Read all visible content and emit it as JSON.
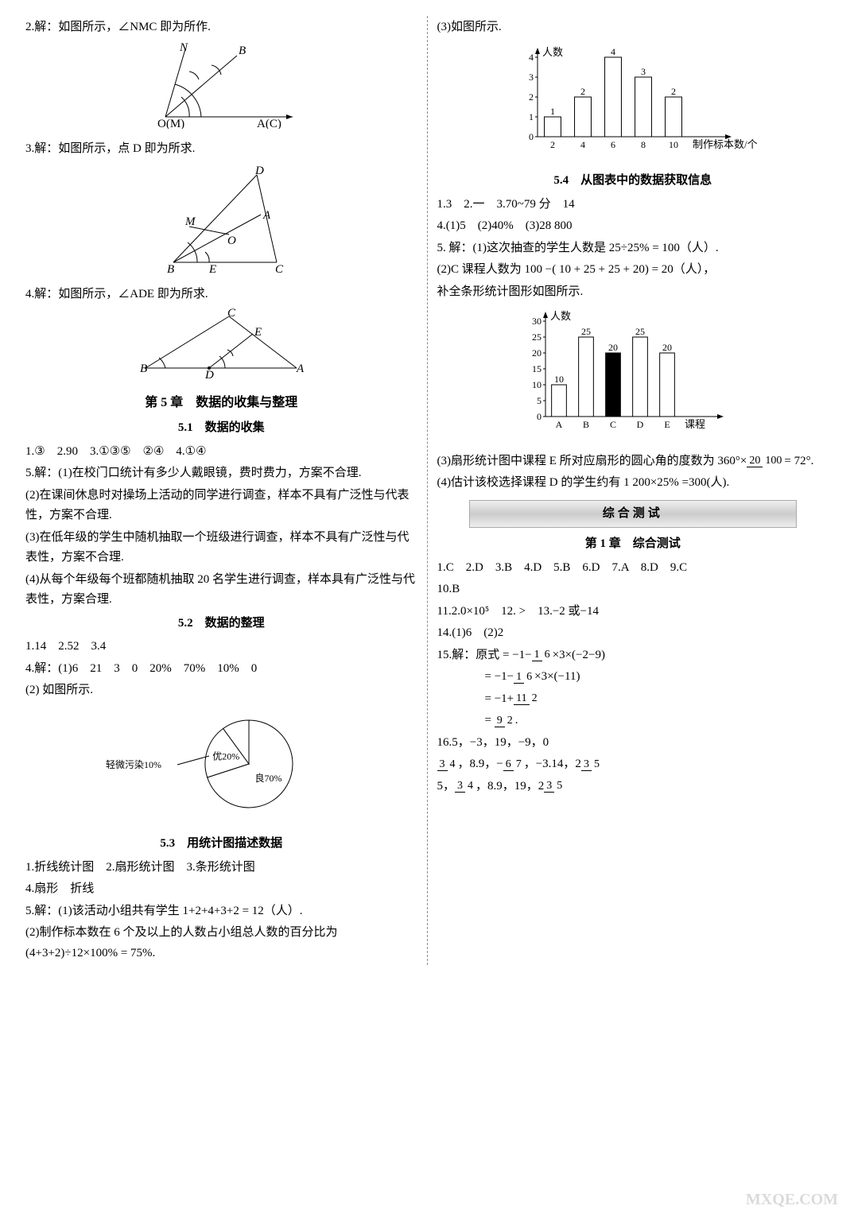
{
  "left": {
    "q2": "2.解：如图所示，∠NMC 即为所作.",
    "fig2": {
      "labels": [
        "N",
        "B",
        "O(M)",
        "A(C)"
      ]
    },
    "q3": "3.解：如图所示，点 D 即为所求.",
    "fig3": {
      "labels": [
        "D",
        "A",
        "M",
        "O",
        "B",
        "E",
        "C"
      ]
    },
    "q4": "4.解：如图所示，∠ADE 即为所求.",
    "fig4": {
      "labels": [
        "C",
        "E",
        "B",
        "D",
        "A"
      ]
    },
    "ch5_title": "第 5 章　数据的收集与整理",
    "s51_title": "5.1　数据的收集",
    "s51_a": "1.③　2.90　3.①③⑤　②④　4.①④",
    "s51_q5_1": "5.解：(1)在校门口统计有多少人戴眼镜，费时费力，方案不合理.",
    "s51_q5_2": "(2)在课间休息时对操场上活动的同学进行调查，样本不具有广泛性与代表性，方案不合理.",
    "s51_q5_3": "(3)在低年级的学生中随机抽取一个班级进行调查，样本不具有广泛性与代表性，方案不合理.",
    "s51_q5_4": "(4)从每个年级每个班都随机抽取 20 名学生进行调查，样本具有广泛性与代表性，方案合理.",
    "s52_title": "5.2　数据的整理",
    "s52_a": "1.14　2.52　3.4",
    "s52_q4": "4.解：(1)6　21　3　0　20%　70%　10%　0",
    "s52_q4_2": "(2) 如图所示.",
    "pie": {
      "slices": [
        {
          "label": "良70%",
          "pct": 70
        },
        {
          "label": "优20%",
          "pct": 20
        },
        {
          "label": "轻微污染10%",
          "pct": 10
        }
      ],
      "outside_label": "轻微污染10%"
    },
    "s53_title": "5.3　用统计图描述数据",
    "s53_a1": "1.折线统计图　2.扇形统计图　3.条形统计图",
    "s53_a4": "4.扇形　折线",
    "s53_q5_1": "5.解：(1)该活动小组共有学生 1+2+4+3+2 = 12（人）.",
    "s53_q5_2": "(2)制作标本数在 6 个及以上的人数占小组总人数的百分比为(4+3+2)÷12×100% = 75%."
  },
  "right": {
    "s53_q5_3": "(3)如图所示.",
    "bar1": {
      "ylabel": "人数",
      "xlabel": "制作标本数/个",
      "categories": [
        "2",
        "4",
        "6",
        "8",
        "10"
      ],
      "values": [
        1,
        2,
        4,
        3,
        2
      ],
      "value_labels": [
        "1",
        "2",
        "4",
        "3",
        "2"
      ],
      "ymax": 4,
      "ytick": 1,
      "bar_color": "#ffffff",
      "border_color": "#000000",
      "bg": "#ffffff"
    },
    "s54_title": "5.4　从图表中的数据获取信息",
    "s54_a1": "1.3　2.一　3.70~79 分　14",
    "s54_a4": "4.(1)5　(2)40%　(3)28 800",
    "s54_q5_1": "5. 解：(1)这次抽查的学生人数是 25÷25% = 100（人）.",
    "s54_q5_2": "(2)C 课程人数为 100 −( 10 + 25 + 25 + 20) = 20（人），",
    "s54_q5_2b": "补全条形统计图形如图所示.",
    "bar2": {
      "ylabel": "人数",
      "xlabel": "课程",
      "categories": [
        "A",
        "B",
        "C",
        "D",
        "E"
      ],
      "values": [
        10,
        25,
        20,
        25,
        20
      ],
      "value_labels": [
        "10",
        "25",
        "20",
        "25",
        "20"
      ],
      "ymax": 30,
      "ytick": 5,
      "highlight_index": 2,
      "bar_color": "#ffffff",
      "highlight_color": "#000000"
    },
    "s54_q5_3_prefix": "(3)扇形统计图中课程 E 所对应扇形的圆心角的度数为 360°×",
    "s54_q5_3_frac_num": "20",
    "s54_q5_3_frac_den": "100",
    "s54_q5_3_suffix": "= 72°.",
    "s54_q5_4": "(4)估计该校选择课程 D 的学生约有 1 200×25% =300(人).",
    "banner": "综合测试",
    "test1_title": "第 1 章　综合测试",
    "t1_mc": "1.C　2.D　3.B　4.D　5.B　6.D　7.A　8.D　9.C",
    "t1_10": "10.B",
    "t1_11_13": "11.2.0×10⁵　12. >　13.−2 或−14",
    "t1_14": "14.(1)6　(2)2",
    "t1_15_head": "15.解：原式 = −1−",
    "t1_15_parts": {
      "l1_frac_n": "1",
      "l1_frac_d": "6",
      "l1_tail": "×3×(−2−9)",
      "l2_head": "= −1−",
      "l2_frac_n": "1",
      "l2_frac_d": "6",
      "l2_tail": "×3×(−11)",
      "l3_head": "= −1+",
      "l3_frac_n": "11",
      "l3_frac_d": "2",
      "l4_head": "= ",
      "l4_frac_n": "9",
      "l4_frac_d": "2",
      "l4_tail": "."
    },
    "t1_16": "16.5，−3，19，−9，0",
    "t1_16b_parts": [
      {
        "n": "3",
        "d": "4"
      },
      "，8.9，−",
      {
        "n": "6",
        "d": "7"
      },
      "，−3.14，2",
      {
        "n": "3",
        "d": "5"
      }
    ],
    "t1_16c_parts": [
      "5，",
      {
        "n": "3",
        "d": "4"
      },
      "，8.9，19，2",
      {
        "n": "3",
        "d": "5"
      }
    ]
  },
  "watermark": "MXQE.COM"
}
